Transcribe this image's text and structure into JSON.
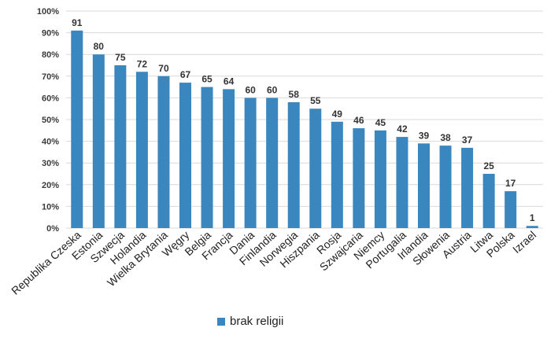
{
  "chart_data": {
    "type": "bar",
    "categories": [
      "Republika Czeska",
      "Estonia",
      "Szwecja",
      "Holandia",
      "Wielka Brytania",
      "Węgry",
      "Belgia",
      "Francja",
      "Dania",
      "Finlandia",
      "Norwegia",
      "Hiszpania",
      "Rosja",
      "Szwajcaria",
      "Niemcy",
      "Portugalia",
      "Irlandia",
      "Słowenia",
      "Austria",
      "Litwa",
      "Polska",
      "Izrael"
    ],
    "values": [
      91,
      80,
      75,
      72,
      70,
      67,
      65,
      64,
      60,
      60,
      58,
      55,
      49,
      46,
      45,
      42,
      39,
      38,
      37,
      25,
      17,
      1
    ],
    "value_labels": [
      "91",
      "80",
      "75",
      "72",
      "70",
      "67",
      "65",
      "64",
      "60",
      "60",
      "58",
      "55",
      "49",
      "46",
      "45",
      "42",
      "39",
      "38",
      "37",
      "25",
      "17",
      "1"
    ],
    "y_ticks": [
      0,
      10,
      20,
      30,
      40,
      50,
      60,
      70,
      80,
      90,
      100
    ],
    "y_tick_labels": [
      "0%",
      "10%",
      "20%",
      "30%",
      "40%",
      "50%",
      "60%",
      "70%",
      "80%",
      "90%",
      "100%"
    ],
    "ylim": [
      0,
      100
    ],
    "grid": true,
    "legend": {
      "position": "bottom",
      "entries": [
        "brak religii"
      ]
    },
    "colors": {
      "bar": "#3a87c0",
      "grid": "#d9d9d9",
      "highlight_label": "#d42027",
      "default_label": "#222222"
    },
    "highlight_category": "Polska"
  }
}
